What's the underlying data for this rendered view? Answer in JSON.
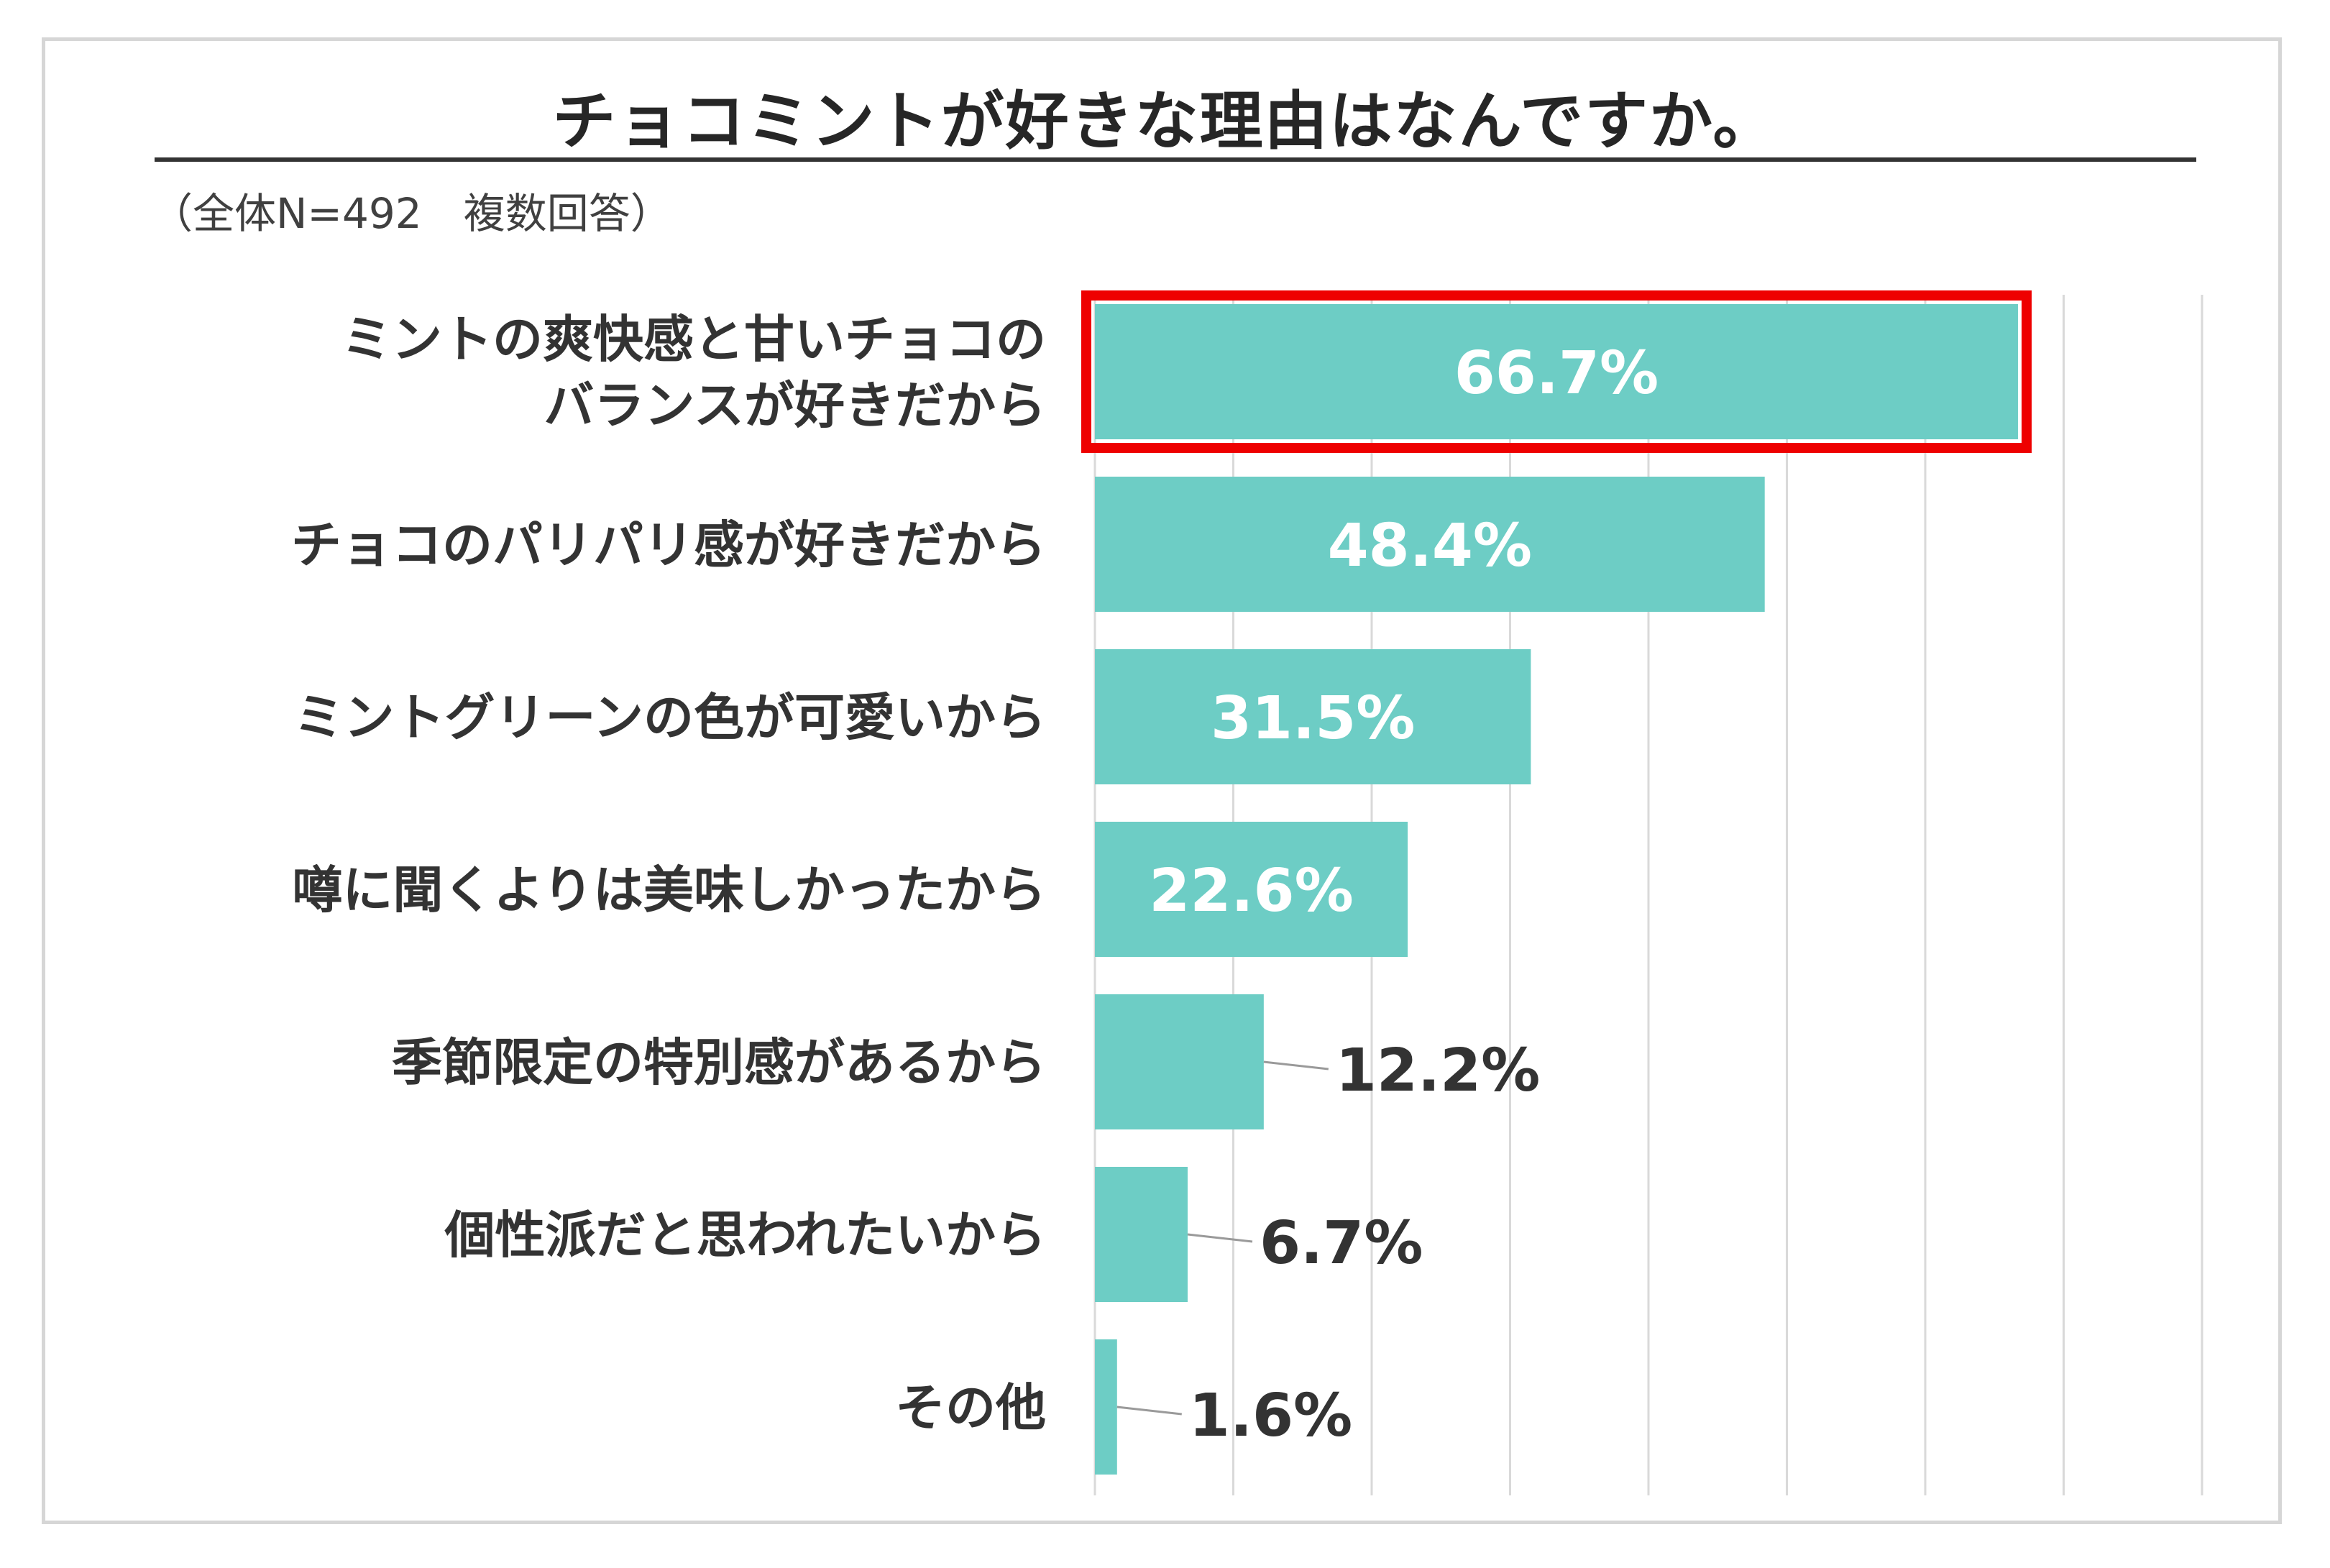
{
  "title": "チョコミントが好きな理由はなんですか。",
  "subtitle": "（全体N=492　複数回答）",
  "colors": {
    "bar": "#6dcdc5",
    "highlight": "#ee0000",
    "grid": "#d9d9d9",
    "text": "#333333"
  },
  "chart_data": {
    "type": "bar",
    "orientation": "horizontal",
    "title": "チョコミントが好きな理由はなんですか。",
    "subtitle": "（全体N=492　複数回答）",
    "categories": [
      [
        "ミントの爽快感と甘いチョコの",
        "バランスが好きだから"
      ],
      [
        "チョコのパリパリ感が好きだから"
      ],
      [
        "ミントグリーンの色が可愛いから"
      ],
      [
        "噂に聞くよりは美味しかったから"
      ],
      [
        "季節限定の特別感があるから"
      ],
      [
        "個性派だと思われたいから"
      ],
      [
        "その他"
      ]
    ],
    "values": [
      66.7,
      48.4,
      31.5,
      22.6,
      12.2,
      6.7,
      1.6
    ],
    "labels": [
      "66.7%",
      "48.4%",
      "31.5%",
      "22.6%",
      "12.2%",
      "6.7%",
      "1.6%"
    ],
    "highlighted_index": 0,
    "xlim": [
      0,
      80
    ],
    "grid": true,
    "legend": "none"
  }
}
